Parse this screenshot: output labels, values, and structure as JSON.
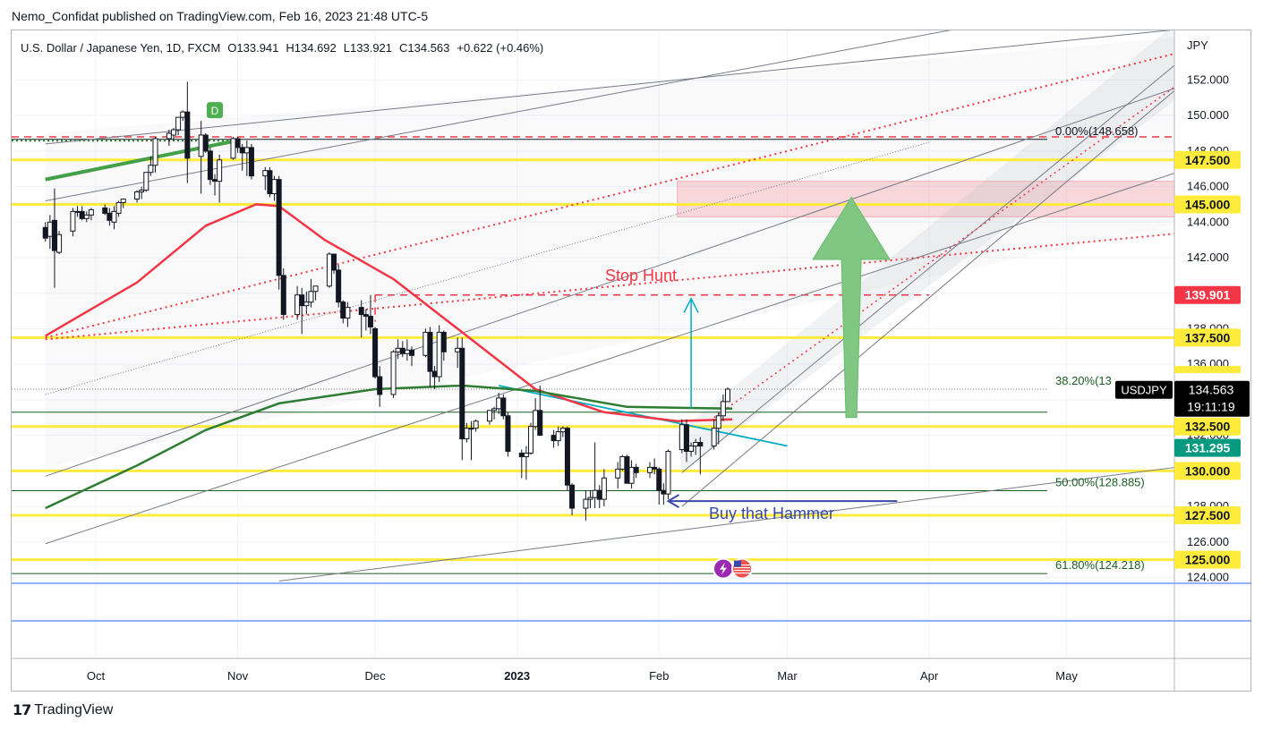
{
  "header": {
    "published": "Nemo_Confidat published on TradingView.com, Feb 16, 2023 21:48 UTC-5"
  },
  "footer": {
    "brand": "TradingView",
    "logo_icon": "tradingview-logo-icon"
  },
  "chart_data": {
    "type": "candlestick",
    "symbol": "USDJPY",
    "legend": {
      "name": "U.S. Dollar / Japanese Yen, 1D, FXCM",
      "open": "O133.941",
      "high": "H134.692",
      "low": "L133.921",
      "close": "C134.563",
      "change": "+0.622 (+0.46%)"
    },
    "currency_label": "JPY",
    "x_ticks": [
      {
        "date": "2022-10-01",
        "label": "Oct"
      },
      {
        "date": "2022-11-01",
        "label": "Nov"
      },
      {
        "date": "2022-12-01",
        "label": "Dec"
      },
      {
        "date": "2023-01-01",
        "label": "2023"
      },
      {
        "date": "2023-02-01",
        "label": "Feb"
      },
      {
        "date": "2023-03-01",
        "label": "Mar"
      },
      {
        "date": "2023-04-01",
        "label": "Apr"
      },
      {
        "date": "2023-05-01",
        "label": "May"
      }
    ],
    "y_ticks": [
      "124.000",
      "126.000",
      "128.000",
      "130.000",
      "132.000",
      "134.000",
      "136.000",
      "138.000",
      "140.000",
      "142.000",
      "144.000",
      "146.000",
      "148.000",
      "150.000",
      "152.000"
    ],
    "ylim": [
      123,
      154
    ],
    "candles": [
      [
        "2022-09-20",
        143.7,
        144.0,
        142.9,
        143.1
      ],
      [
        "2022-09-21",
        143.2,
        144.4,
        142.5,
        144.0
      ],
      [
        "2022-09-22",
        144.1,
        145.9,
        140.3,
        142.4
      ],
      [
        "2022-09-23",
        142.3,
        143.5,
        142.2,
        143.3
      ],
      [
        "2022-09-26",
        143.5,
        144.8,
        143.2,
        144.6
      ],
      [
        "2022-09-27",
        144.6,
        144.9,
        144.3,
        144.6
      ],
      [
        "2022-09-28",
        144.6,
        144.9,
        144.1,
        144.2
      ],
      [
        "2022-09-29",
        144.2,
        144.6,
        144.0,
        144.4
      ],
      [
        "2022-09-30",
        144.4,
        144.8,
        144.1,
        144.7
      ],
      [
        "2022-10-03",
        144.8,
        145.0,
        144.4,
        144.5
      ],
      [
        "2022-10-04",
        144.5,
        144.8,
        143.8,
        144.1
      ],
      [
        "2022-10-05",
        144.0,
        144.9,
        143.6,
        144.6
      ],
      [
        "2022-10-06",
        144.5,
        145.2,
        144.3,
        145.1
      ],
      [
        "2022-10-07",
        145.1,
        145.3,
        144.8,
        145.3
      ],
      [
        "2022-10-10",
        145.3,
        145.8,
        145.1,
        145.7
      ],
      [
        "2022-10-11",
        145.7,
        146.0,
        145.3,
        145.8
      ],
      [
        "2022-10-12",
        145.8,
        146.8,
        145.7,
        146.8
      ],
      [
        "2022-10-13",
        146.8,
        147.7,
        146.6,
        147.2
      ],
      [
        "2022-10-14",
        147.2,
        148.8,
        146.8,
        148.7
      ],
      [
        "2022-10-17",
        148.7,
        149.2,
        148.3,
        149.0
      ],
      [
        "2022-10-18",
        148.9,
        149.3,
        148.6,
        149.2
      ],
      [
        "2022-10-19",
        149.2,
        149.9,
        148.9,
        149.9
      ],
      [
        "2022-10-20",
        149.9,
        150.3,
        149.7,
        150.2
      ],
      [
        "2022-10-21",
        150.2,
        151.9,
        146.2,
        147.6
      ],
      [
        "2022-10-24",
        147.7,
        149.7,
        145.6,
        148.9
      ],
      [
        "2022-10-25",
        148.9,
        149.0,
        147.9,
        148.0
      ],
      [
        "2022-10-26",
        148.0,
        148.2,
        146.1,
        146.4
      ],
      [
        "2022-10-27",
        146.4,
        146.7,
        145.5,
        146.3
      ],
      [
        "2022-10-28",
        146.3,
        147.8,
        145.1,
        147.5
      ],
      [
        "2022-10-31",
        147.6,
        148.8,
        147.5,
        148.7
      ],
      [
        "2022-11-01",
        148.7,
        148.8,
        147.9,
        148.2
      ],
      [
        "2022-11-02",
        148.2,
        148.4,
        146.9,
        147.9
      ],
      [
        "2022-11-03",
        147.9,
        148.6,
        146.6,
        148.2
      ],
      [
        "2022-11-04",
        148.2,
        148.4,
        146.4,
        146.6
      ],
      [
        "2022-11-07",
        146.6,
        147.1,
        145.8,
        146.9
      ],
      [
        "2022-11-08",
        146.9,
        147.1,
        145.4,
        145.6
      ],
      [
        "2022-11-09",
        145.6,
        146.6,
        145.2,
        146.4
      ],
      [
        "2022-11-10",
        146.4,
        146.6,
        140.2,
        141.0
      ],
      [
        "2022-11-11",
        141.0,
        141.4,
        138.5,
        138.8
      ],
      [
        "2022-11-14",
        138.8,
        140.4,
        138.5,
        139.9
      ],
      [
        "2022-11-15",
        139.9,
        140.3,
        137.7,
        139.3
      ],
      [
        "2022-11-16",
        139.3,
        140.1,
        138.8,
        139.5
      ],
      [
        "2022-11-17",
        139.5,
        140.8,
        139.2,
        140.1
      ],
      [
        "2022-11-18",
        140.1,
        140.4,
        139.6,
        140.4
      ],
      [
        "2022-11-21",
        140.4,
        142.3,
        140.3,
        142.2
      ],
      [
        "2022-11-22",
        142.2,
        142.2,
        141.1,
        141.3
      ],
      [
        "2022-11-23",
        141.3,
        141.6,
        139.2,
        139.5
      ],
      [
        "2022-11-24",
        139.5,
        139.6,
        138.3,
        138.6
      ],
      [
        "2022-11-25",
        138.6,
        139.5,
        138.1,
        139.2
      ],
      [
        "2022-11-28",
        139.2,
        139.6,
        137.5,
        138.8
      ],
      [
        "2022-11-29",
        138.8,
        139.1,
        137.9,
        138.7
      ],
      [
        "2022-11-30",
        138.7,
        139.9,
        137.7,
        138.1
      ],
      [
        "2022-12-01",
        138.0,
        138.1,
        135.2,
        135.3
      ],
      [
        "2022-12-02",
        135.3,
        135.9,
        133.6,
        134.3
      ],
      [
        "2022-12-05",
        134.3,
        136.8,
        134.1,
        136.7
      ],
      [
        "2022-12-06",
        136.7,
        137.4,
        136.3,
        136.9
      ],
      [
        "2022-12-07",
        136.9,
        137.3,
        136.4,
        136.6
      ],
      [
        "2022-12-08",
        136.6,
        137.4,
        136.2,
        136.8
      ],
      [
        "2022-12-09",
        136.8,
        137.0,
        135.9,
        136.5
      ],
      [
        "2022-12-12",
        136.5,
        138.0,
        136.4,
        137.8
      ],
      [
        "2022-12-13",
        137.8,
        138.1,
        134.7,
        135.6
      ],
      [
        "2022-12-14",
        135.6,
        135.9,
        134.6,
        135.3
      ],
      [
        "2022-12-15",
        135.3,
        138.2,
        135.0,
        137.8
      ],
      [
        "2022-12-16",
        137.8,
        137.9,
        136.2,
        136.7
      ],
      [
        "2022-12-19",
        136.7,
        137.5,
        135.8,
        136.9
      ],
      [
        "2022-12-20",
        136.9,
        137.5,
        130.6,
        131.8
      ],
      [
        "2022-12-21",
        131.8,
        132.7,
        131.6,
        132.4
      ],
      [
        "2022-12-22",
        132.4,
        132.8,
        130.6,
        132.4
      ],
      [
        "2022-12-23",
        132.4,
        132.9,
        132.2,
        132.8
      ],
      [
        "2022-12-26",
        132.8,
        133.4,
        132.6,
        133.4
      ],
      [
        "2022-12-27",
        133.4,
        133.6,
        132.9,
        133.5
      ],
      [
        "2022-12-28",
        133.5,
        134.4,
        133.2,
        134.1
      ],
      [
        "2022-12-29",
        134.1,
        134.3,
        132.9,
        133.1
      ],
      [
        "2022-12-30",
        133.1,
        133.3,
        130.8,
        131.1
      ],
      [
        "2023-01-02",
        131.0,
        131.2,
        129.6,
        130.8
      ],
      [
        "2023-01-03",
        130.8,
        131.4,
        129.5,
        131.0
      ],
      [
        "2023-01-04",
        131.0,
        132.7,
        130.9,
        132.5
      ],
      [
        "2023-01-05",
        132.5,
        134.1,
        132.3,
        133.4
      ],
      [
        "2023-01-06",
        133.4,
        134.8,
        132.3,
        132.0
      ],
      [
        "2023-01-09",
        132.0,
        132.3,
        131.3,
        131.7
      ],
      [
        "2023-01-10",
        131.7,
        132.5,
        131.4,
        132.2
      ],
      [
        "2023-01-11",
        132.2,
        132.5,
        131.9,
        132.4
      ],
      [
        "2023-01-12",
        132.4,
        132.5,
        128.9,
        129.2
      ],
      [
        "2023-01-13",
        129.2,
        129.3,
        127.5,
        127.9
      ],
      [
        "2023-01-16",
        127.9,
        128.9,
        127.2,
        128.4
      ],
      [
        "2023-01-17",
        128.4,
        128.9,
        127.9,
        128.5
      ],
      [
        "2023-01-18",
        128.5,
        131.6,
        127.9,
        128.9
      ],
      [
        "2023-01-19",
        128.9,
        129.2,
        127.9,
        128.4
      ],
      [
        "2023-01-20",
        128.4,
        130.1,
        128.0,
        129.6
      ],
      [
        "2023-01-23",
        129.6,
        130.5,
        129.0,
        130.1
      ],
      [
        "2023-01-24",
        130.1,
        130.9,
        130.0,
        130.8
      ],
      [
        "2023-01-25",
        130.8,
        130.9,
        129.4,
        129.3
      ],
      [
        "2023-01-26",
        129.3,
        130.6,
        129.0,
        130.2
      ],
      [
        "2023-01-27",
        130.2,
        130.4,
        129.6,
        129.9
      ],
      [
        "2023-01-30",
        129.9,
        130.5,
        129.6,
        130.2
      ],
      [
        "2023-01-31",
        130.2,
        130.7,
        129.8,
        130.1
      ],
      [
        "2023-02-01",
        130.1,
        130.2,
        128.1,
        128.9
      ],
      [
        "2023-02-02",
        128.9,
        129.3,
        128.1,
        128.7
      ],
      [
        "2023-02-03",
        128.7,
        131.2,
        128.4,
        131.1
      ],
      [
        "2023-02-06",
        131.2,
        132.9,
        131.0,
        132.6
      ],
      [
        "2023-02-07",
        132.6,
        132.9,
        130.5,
        131.1
      ],
      [
        "2023-02-08",
        131.1,
        131.6,
        130.8,
        131.4
      ],
      [
        "2023-02-09",
        131.4,
        131.8,
        130.9,
        131.6
      ],
      [
        "2023-02-10",
        131.6,
        131.9,
        129.8,
        131.4
      ],
      [
        "2023-02-13",
        131.4,
        132.9,
        131.2,
        132.4
      ],
      [
        "2023-02-14",
        132.4,
        133.3,
        131.5,
        133.1
      ],
      [
        "2023-02-15",
        133.1,
        134.3,
        132.8,
        133.9
      ],
      [
        "2023-02-16",
        133.9,
        134.7,
        133.9,
        134.6
      ]
    ],
    "horizontal_levels": [
      {
        "value": 147.5,
        "label": "147.500"
      },
      {
        "value": 145.0,
        "label": "145.000"
      },
      {
        "value": 137.5,
        "label": "137.500"
      },
      {
        "value": 132.5,
        "label": "132.500"
      },
      {
        "value": 130.0,
        "label": "130.000"
      },
      {
        "value": 127.5,
        "label": "127.500"
      },
      {
        "value": 125.0,
        "label": "125.000"
      }
    ],
    "highlight_labels": [
      {
        "value": 139.901,
        "label": "139.901",
        "color": "#f23645"
      },
      {
        "value": 131.295,
        "label": "131.295",
        "color": "#089981"
      }
    ],
    "price_label": {
      "symbol": "USDJPY",
      "price": "134.563",
      "countdown": "19:11:19"
    },
    "fib_levels": [
      {
        "value": 148.658,
        "label": "0.00%(148.658)"
      },
      {
        "value": 134.6,
        "label": "38.20%(13"
      },
      {
        "value": 128.885,
        "label": "50.00%(128.885)"
      },
      {
        "value": 124.218,
        "label": "61.80%(124.218)"
      }
    ],
    "moving_averages": [
      {
        "color": "#f23645",
        "points": [
          [
            "2022-09-20",
            137.6
          ],
          [
            "2022-10-10",
            140.6
          ],
          [
            "2022-10-25",
            143.8
          ],
          [
            "2022-11-05",
            145.0
          ],
          [
            "2022-11-10",
            144.9
          ],
          [
            "2022-11-20",
            143.0
          ],
          [
            "2022-12-05",
            140.8
          ],
          [
            "2022-12-20",
            137.8
          ],
          [
            "2023-01-05",
            134.6
          ],
          [
            "2023-01-20",
            133.3
          ],
          [
            "2023-02-05",
            132.8
          ],
          [
            "2023-02-17",
            132.9
          ]
        ]
      },
      {
        "color": "#2e7d32",
        "points": [
          [
            "2022-09-20",
            127.9
          ],
          [
            "2022-10-10",
            130.3
          ],
          [
            "2022-10-25",
            132.3
          ],
          [
            "2022-11-10",
            133.8
          ],
          [
            "2022-12-01",
            134.6
          ],
          [
            "2022-12-20",
            134.8
          ],
          [
            "2023-01-05",
            134.5
          ],
          [
            "2023-01-25",
            133.6
          ],
          [
            "2023-02-17",
            133.5
          ]
        ]
      }
    ],
    "annotations": {
      "stop_hunt": "Stop Hunt",
      "buy_hammer": "Buy that Hammer",
      "badge_letter": "D"
    },
    "rect_zone": {
      "start": "2023-02-05",
      "end": "2023-05-31",
      "top": 146.3,
      "bottom": 144.3
    },
    "icon_names": [
      "dividend-d-icon",
      "flash-icon",
      "us-flag-icon",
      "up-arrow-icon"
    ]
  }
}
